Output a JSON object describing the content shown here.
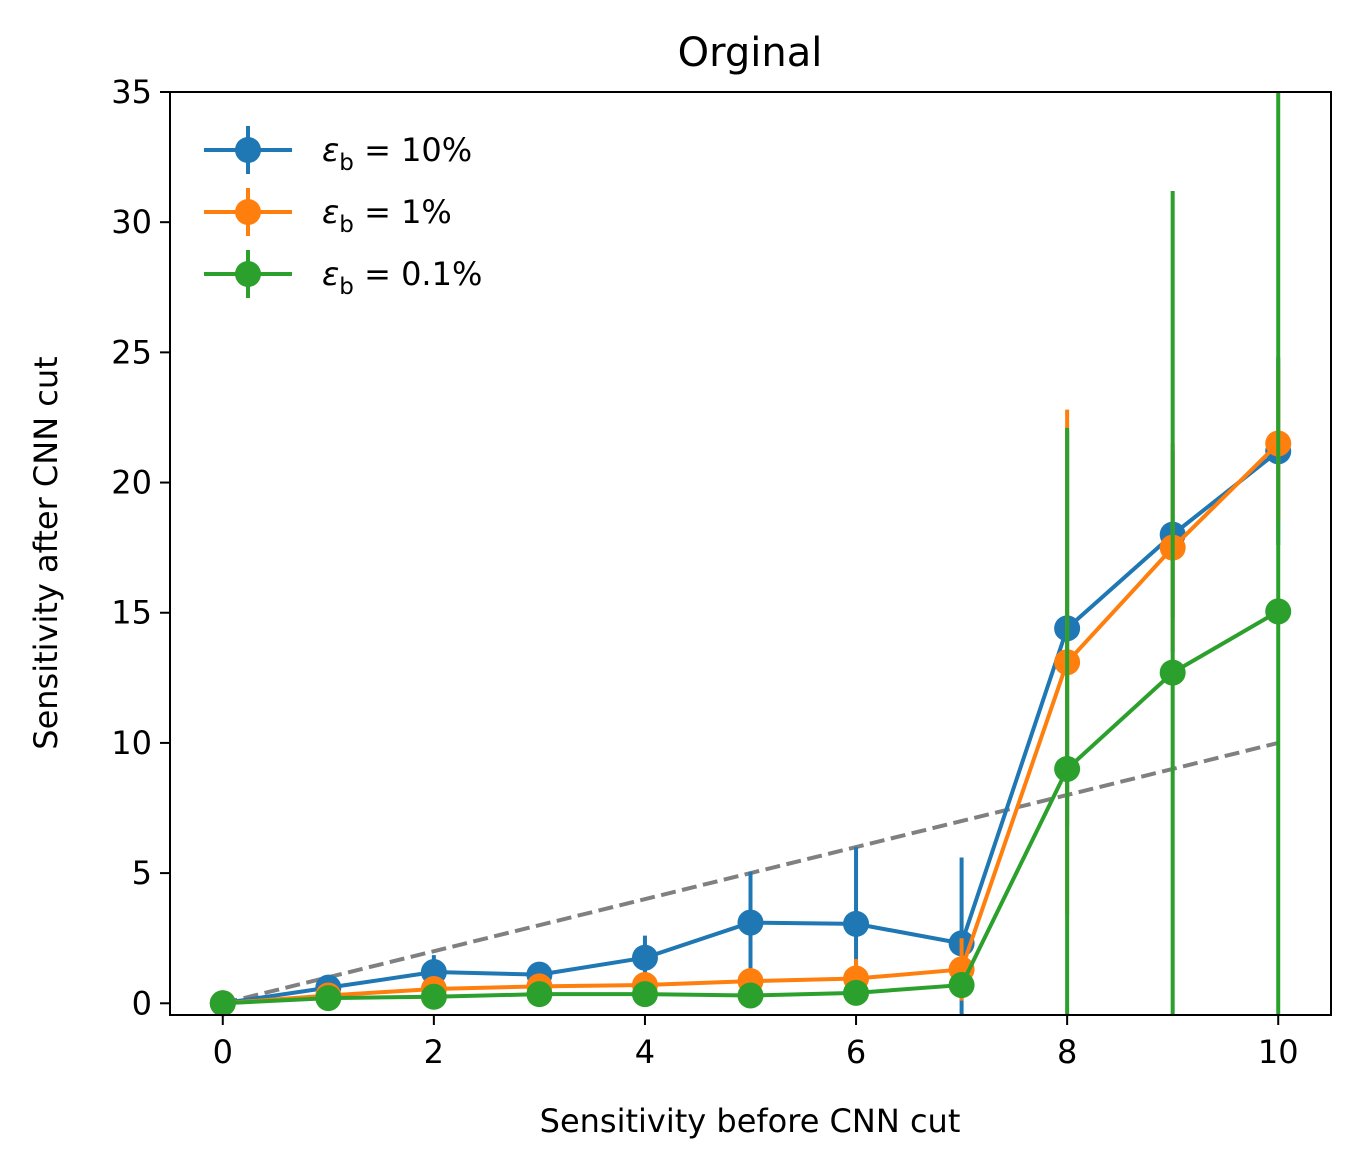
{
  "chart_data": {
    "type": "line",
    "title": "Orginal",
    "xlabel": "Sensitivity before CNN cut",
    "ylabel": "Sensitivity after CNN cut",
    "xlim": [
      -0.5,
      10.5
    ],
    "ylim": [
      -0.45,
      35
    ],
    "x_ticks": [
      "0",
      "2",
      "4",
      "6",
      "8",
      "10"
    ],
    "y_ticks": [
      "0",
      "5",
      "10",
      "15",
      "20",
      "25",
      "30",
      "35"
    ],
    "grid": false,
    "legend_position": "top-left",
    "x": [
      0,
      1,
      2,
      3,
      4,
      5,
      6,
      7,
      8,
      9,
      10
    ],
    "reference_line": {
      "x": [
        0,
        10
      ],
      "y": [
        0,
        10
      ],
      "color": "#808080",
      "style": "dashed"
    },
    "series": [
      {
        "name": "εb = 10%",
        "legend_base": "ε",
        "legend_sub": "b",
        "legend_rest": " = 10%",
        "color": "#1f77b4",
        "values": [
          0.0,
          0.6,
          1.2,
          1.1,
          1.75,
          3.1,
          3.05,
          2.3,
          14.4,
          18.0,
          21.2
        ],
        "error": [
          0.05,
          0.3,
          0.65,
          0.3,
          0.85,
          1.95,
          2.95,
          3.3,
          7.6,
          3.2,
          3.6
        ]
      },
      {
        "name": "εb = 1%",
        "legend_base": "ε",
        "legend_sub": "b",
        "legend_rest": " = 1%",
        "color": "#ff7f0e",
        "values": [
          0.0,
          0.3,
          0.55,
          0.65,
          0.7,
          0.85,
          0.95,
          1.3,
          13.1,
          17.5,
          21.5
        ],
        "error": [
          0.05,
          0.25,
          0.35,
          0.3,
          0.4,
          0.5,
          0.75,
          1.2,
          9.7,
          4.0,
          3.0
        ]
      },
      {
        "name": "εb = 0.1%",
        "legend_base": "ε",
        "legend_sub": "b",
        "legend_rest": " = 0.1%",
        "color": "#2ca02c",
        "values": [
          0.0,
          0.2,
          0.25,
          0.35,
          0.35,
          0.3,
          0.4,
          0.7,
          9.0,
          12.7,
          15.05
        ],
        "error": [
          0.05,
          0.15,
          0.2,
          0.2,
          0.25,
          0.25,
          0.4,
          0.5,
          13.1,
          18.5,
          25.0
        ]
      }
    ]
  }
}
